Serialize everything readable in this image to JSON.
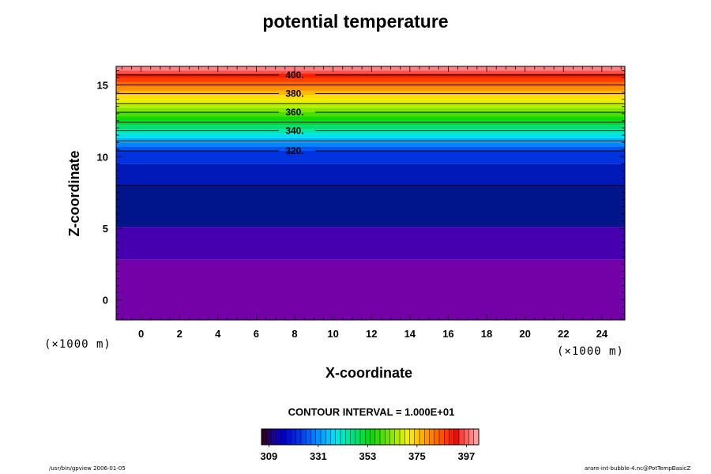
{
  "chart_data": {
    "type": "heatmap",
    "title": "potential temperature",
    "xlabel": "X-coordinate",
    "ylabel": "Z-coordinate",
    "x_unit": "(×1000 m)",
    "z_unit": "(×1000 m)",
    "xlim": [
      -1.3,
      25.2
    ],
    "ylim": [
      -1.4,
      16.3
    ],
    "x_ticks": [
      0,
      2,
      4,
      6,
      8,
      10,
      12,
      14,
      16,
      18,
      20,
      22,
      24
    ],
    "y_ticks": [
      0,
      5,
      10,
      15
    ],
    "bands": [
      {
        "z0": -1.4,
        "z1": 2.8,
        "color": "#7400a8"
      },
      {
        "z0": 2.8,
        "z1": 5.1,
        "color": "#4600b0"
      },
      {
        "z0": 5.1,
        "z1": 8.0,
        "color": "#00148c"
      },
      {
        "z0": 8.0,
        "z1": 9.5,
        "color": "#0018b8"
      },
      {
        "z0": 9.5,
        "z1": 10.4,
        "color": "#0032e0"
      },
      {
        "z0": 10.4,
        "z1": 10.7,
        "color": "#0058f0"
      },
      {
        "z0": 10.7,
        "z1": 11.0,
        "color": "#0088f8"
      },
      {
        "z0": 11.0,
        "z1": 11.3,
        "color": "#00b4f8"
      },
      {
        "z0": 11.3,
        "z1": 11.6,
        "color": "#00e0f0"
      },
      {
        "z0": 11.6,
        "z1": 11.9,
        "color": "#00e8b0"
      },
      {
        "z0": 11.9,
        "z1": 12.2,
        "color": "#00e070"
      },
      {
        "z0": 12.2,
        "z1": 12.5,
        "color": "#00d838"
      },
      {
        "z0": 12.5,
        "z1": 12.8,
        "color": "#10d800"
      },
      {
        "z0": 12.8,
        "z1": 13.1,
        "color": "#48e000"
      },
      {
        "z0": 13.1,
        "z1": 13.4,
        "color": "#80e800"
      },
      {
        "z0": 13.4,
        "z1": 13.7,
        "color": "#b8f000"
      },
      {
        "z0": 13.7,
        "z1": 14.0,
        "color": "#e8f000"
      },
      {
        "z0": 14.0,
        "z1": 14.3,
        "color": "#ffe000"
      },
      {
        "z0": 14.3,
        "z1": 14.6,
        "color": "#ffb800"
      },
      {
        "z0": 14.6,
        "z1": 14.9,
        "color": "#ff9000"
      },
      {
        "z0": 14.9,
        "z1": 15.2,
        "color": "#ff6800"
      },
      {
        "z0": 15.2,
        "z1": 15.5,
        "color": "#ff4000"
      },
      {
        "z0": 15.5,
        "z1": 15.8,
        "color": "#f82000"
      },
      {
        "z0": 15.8,
        "z1": 16.0,
        "color": "#ff5050"
      },
      {
        "z0": 16.0,
        "z1": 16.3,
        "color": "#ff8080"
      }
    ],
    "contour_lines": [
      {
        "z": 8.0,
        "label": ""
      },
      {
        "z": 10.4,
        "label": "320."
      },
      {
        "z": 11.1,
        "label": ""
      },
      {
        "z": 11.8,
        "label": "340."
      },
      {
        "z": 12.4,
        "label": ""
      },
      {
        "z": 13.1,
        "label": "360."
      },
      {
        "z": 13.7,
        "label": ""
      },
      {
        "z": 14.4,
        "label": "380."
      },
      {
        "z": 15.0,
        "label": ""
      },
      {
        "z": 15.7,
        "label": "400."
      }
    ],
    "contour_label_x": 8.0,
    "contour_interval": "CONTOUR INTERVAL = 1.000E+01",
    "colorbar": {
      "colors": [
        "#300020",
        "#200060",
        "#1a0090",
        "#0c00b0",
        "#0000c8",
        "#0010d8",
        "#0020e0",
        "#0030e8",
        "#0048f0",
        "#0060f8",
        "#0078ff",
        "#0090ff",
        "#00a8ff",
        "#00c0ff",
        "#00d8f8",
        "#00e8e0",
        "#00e8c0",
        "#00e8a0",
        "#00e080",
        "#00e060",
        "#00e040",
        "#00d820",
        "#10d800",
        "#30d800",
        "#50e000",
        "#70e000",
        "#90e800",
        "#b0e800",
        "#d0f000",
        "#f0f000",
        "#ffe000",
        "#ffc800",
        "#ffb000",
        "#ff9800",
        "#ff8000",
        "#ff6800",
        "#ff5000",
        "#ff3800",
        "#f82000",
        "#e81000",
        "#ff4040",
        "#ff6060",
        "#ff8080",
        "#ffa0a0"
      ],
      "labels": [
        "309",
        "331",
        "353",
        "375",
        "397"
      ]
    }
  },
  "footer": {
    "left": "/usr/bin/gpview 2006-01-05",
    "right": "arare-int-bubble-4.nc@PotTempBasicZ"
  }
}
